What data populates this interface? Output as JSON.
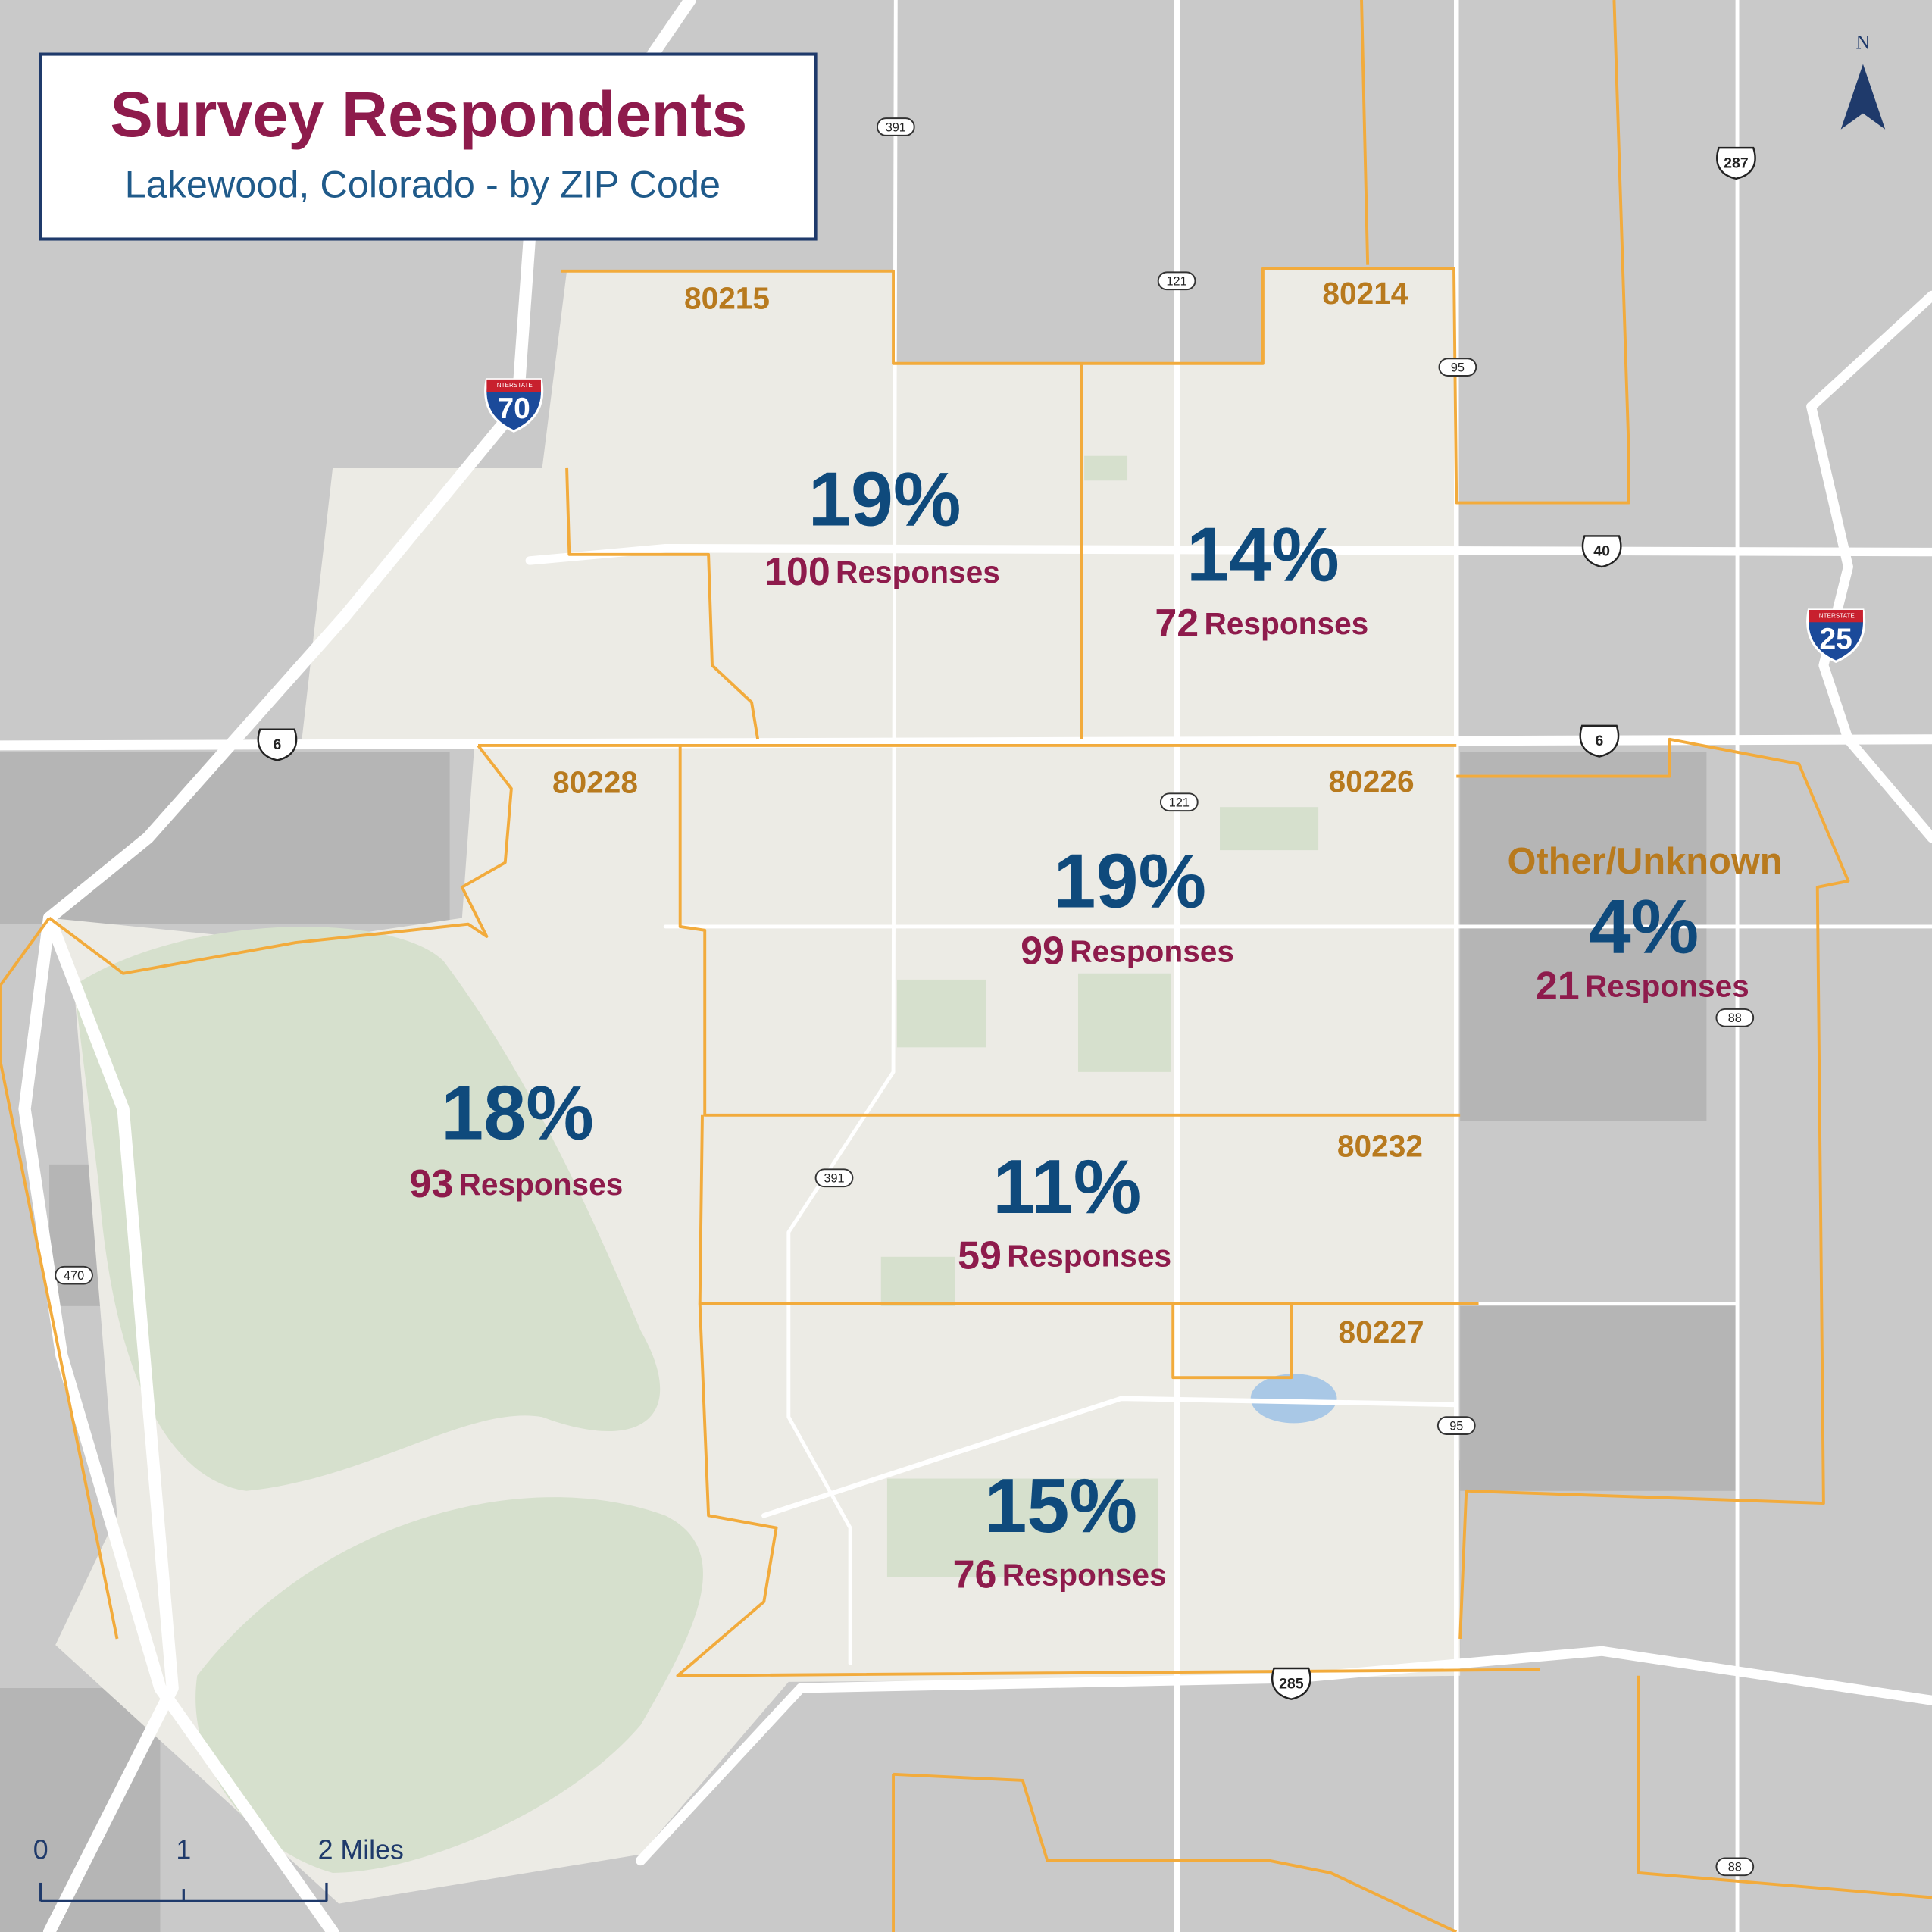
{
  "header": {
    "title": "Survey Respondents",
    "subtitle": "Lakewood, Colorado - by ZIP Code"
  },
  "zones": [
    {
      "zip": "80215",
      "percent": "19%",
      "count": "100",
      "unit": "Responses"
    },
    {
      "zip": "80214",
      "percent": "14%",
      "count": "72",
      "unit": "Responses"
    },
    {
      "zip": "80226",
      "percent": "19%",
      "count": "99",
      "unit": "Responses"
    },
    {
      "zip": "80228",
      "percent": "18%",
      "count": "93",
      "unit": "Responses"
    },
    {
      "zip": "80232",
      "percent": "11%",
      "count": "59",
      "unit": "Responses"
    },
    {
      "zip": "80227",
      "percent": "15%",
      "count": "76",
      "unit": "Responses"
    },
    {
      "zip": "Other/Unknown",
      "percent": "4%",
      "count": "21",
      "unit": "Responses"
    }
  ],
  "shields": [
    {
      "label": "391",
      "kind": "state"
    },
    {
      "label": "287",
      "kind": "us"
    },
    {
      "label": "121",
      "kind": "state"
    },
    {
      "label": "95",
      "kind": "state"
    },
    {
      "label": "70",
      "kind": "interstate",
      "banner": "INTERSTATE"
    },
    {
      "label": "40",
      "kind": "us"
    },
    {
      "label": "25",
      "kind": "interstate",
      "banner": "INTERSTATE"
    },
    {
      "label": "6",
      "kind": "us"
    },
    {
      "label": "6",
      "kind": "us"
    },
    {
      "label": "121",
      "kind": "state"
    },
    {
      "label": "88",
      "kind": "state"
    },
    {
      "label": "391",
      "kind": "state"
    },
    {
      "label": "470",
      "kind": "state"
    },
    {
      "label": "95",
      "kind": "state"
    },
    {
      "label": "285",
      "kind": "us"
    },
    {
      "label": "88",
      "kind": "state"
    }
  ],
  "scale": {
    "labels": [
      "0",
      "1",
      "2 Miles"
    ]
  },
  "north": "N"
}
